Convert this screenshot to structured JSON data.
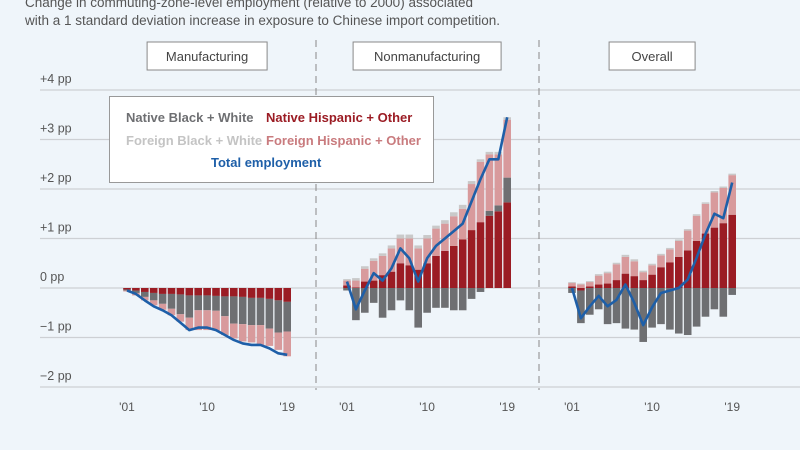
{
  "subtitle": [
    "Change in commuting-zone-level employment (relative to 2000) associated",
    "with a 1 standard deviation increase in exposure to Chinese import competition."
  ],
  "colors": {
    "native_hispanic_other": "#9b1c24",
    "native_black_white": "#6e6f72",
    "foreign_hispanic_other": "#d89a9c",
    "foreign_black_white": "#c9c9c9",
    "total": "#1e5fa8"
  },
  "legend": {
    "native_black_white": "Native Black + White",
    "native_hispanic_other": "Native Hispanic + Other",
    "foreign_black_white": "Foreign Black + White",
    "foreign_hispanic_other": "Foreign Hispanic + Other",
    "total": "Total employment"
  },
  "chart_data": {
    "type": "bar",
    "stacked": true,
    "unit": "pp",
    "ylim": [
      -2,
      4
    ],
    "yticks": [
      {
        "v": 4,
        "label": "+4 pp"
      },
      {
        "v": 3,
        "label": "+3 pp"
      },
      {
        "v": 2,
        "label": "+2 pp"
      },
      {
        "v": 1,
        "label": "+1 pp"
      },
      {
        "v": 0,
        "label": "0 pp"
      },
      {
        "v": -1,
        "label": "−1 pp"
      },
      {
        "v": -2,
        "label": "−2 pp"
      }
    ],
    "x": [
      2001,
      2002,
      2003,
      2004,
      2005,
      2006,
      2007,
      2008,
      2009,
      2010,
      2011,
      2012,
      2013,
      2014,
      2015,
      2016,
      2017,
      2018,
      2019
    ],
    "xticks": [
      {
        "v": 2001,
        "label": "'01"
      },
      {
        "v": 2010,
        "label": "'10"
      },
      {
        "v": 2019,
        "label": "'19"
      }
    ],
    "panels": [
      {
        "title": "Manufacturing",
        "series": {
          "native_hispanic_other": [
            -0.03,
            -0.05,
            -0.08,
            -0.1,
            -0.12,
            -0.12,
            -0.13,
            -0.15,
            -0.15,
            -0.15,
            -0.16,
            -0.17,
            -0.17,
            -0.18,
            -0.2,
            -0.2,
            -0.22,
            -0.25,
            -0.28
          ],
          "native_black_white": [
            -0.02,
            -0.05,
            -0.1,
            -0.15,
            -0.2,
            -0.3,
            -0.4,
            -0.45,
            -0.3,
            -0.3,
            -0.3,
            -0.4,
            -0.55,
            -0.55,
            -0.55,
            -0.55,
            -0.6,
            -0.65,
            -0.6
          ],
          "foreign_hispanic_other": [
            -0.02,
            -0.05,
            -0.07,
            -0.1,
            -0.12,
            -0.13,
            -0.15,
            -0.25,
            -0.4,
            -0.4,
            -0.4,
            -0.38,
            -0.3,
            -0.35,
            -0.35,
            -0.4,
            -0.35,
            -0.35,
            -0.5
          ],
          "foreign_black_white": [
            0,
            0,
            0,
            0,
            0,
            0,
            0,
            0,
            0,
            0,
            0,
            0,
            0,
            0,
            0,
            0,
            0,
            0,
            0
          ],
          "total": [
            -0.05,
            -0.12,
            -0.25,
            -0.37,
            -0.45,
            -0.55,
            -0.7,
            -0.85,
            -0.8,
            -0.8,
            -0.85,
            -0.95,
            -1.05,
            -1.12,
            -1.15,
            -1.15,
            -1.22,
            -1.32,
            -1.35
          ]
        }
      },
      {
        "title": "Nonmanufacturing",
        "series": {
          "native_hispanic_other": [
            0.05,
            0.01,
            0.13,
            0.15,
            0.26,
            0.33,
            0.5,
            0.46,
            0.37,
            0.5,
            0.65,
            0.75,
            0.85,
            0.98,
            1.17,
            1.33,
            1.46,
            1.55,
            1.73
          ],
          "native_black_white": [
            -0.05,
            -0.65,
            -0.5,
            -0.3,
            -0.6,
            -0.45,
            -0.25,
            -0.45,
            -0.8,
            -0.5,
            -0.4,
            -0.4,
            -0.45,
            -0.45,
            -0.22,
            -0.08,
            0.1,
            0.12,
            0.5
          ],
          "foreign_hispanic_other": [
            0.1,
            0.14,
            0.26,
            0.4,
            0.39,
            0.47,
            0.5,
            0.54,
            0.43,
            0.5,
            0.55,
            0.55,
            0.6,
            0.62,
            0.93,
            1.22,
            1.14,
            1.03,
            1.17
          ],
          "foreign_black_white": [
            0.03,
            0.05,
            0.05,
            0.05,
            0.05,
            0.06,
            0.08,
            0.08,
            0.06,
            0.07,
            0.06,
            0.07,
            0.08,
            0.08,
            0.06,
            0.05,
            0.05,
            0.05,
            0.05
          ],
          "total": [
            0.13,
            -0.43,
            -0.05,
            0.3,
            0.15,
            0.4,
            0.8,
            0.6,
            0.13,
            0.6,
            0.85,
            1.0,
            1.15,
            1.3,
            1.75,
            2.2,
            2.6,
            2.6,
            3.45
          ]
        }
      },
      {
        "title": "Overall",
        "series": {
          "native_hispanic_other": [
            0.03,
            -0.05,
            0.03,
            0.07,
            0.09,
            0.16,
            0.29,
            0.24,
            0.16,
            0.27,
            0.42,
            0.52,
            0.63,
            0.76,
            0.95,
            1.1,
            1.22,
            1.31,
            1.48
          ],
          "native_black_white": [
            -0.1,
            -0.66,
            -0.54,
            -0.43,
            -0.73,
            -0.71,
            -0.82,
            -0.84,
            -1.09,
            -0.8,
            -0.73,
            -0.84,
            -0.92,
            -0.95,
            -0.78,
            -0.58,
            -0.43,
            -0.58,
            -0.14
          ],
          "foreign_hispanic_other": [
            0.07,
            0.07,
            0.09,
            0.18,
            0.21,
            0.32,
            0.34,
            0.3,
            0.16,
            0.19,
            0.24,
            0.26,
            0.32,
            0.4,
            0.51,
            0.6,
            0.71,
            0.71,
            0.8
          ],
          "foreign_black_white": [
            0.02,
            0.02,
            0.02,
            0.03,
            0.03,
            0.03,
            0.04,
            0.04,
            0.03,
            0.03,
            0.03,
            0.03,
            0.03,
            0.03,
            0.03,
            0.03,
            0.03,
            0.03,
            0.03
          ],
          "total": [
            0,
            -0.61,
            -0.37,
            -0.16,
            -0.37,
            -0.24,
            0.07,
            -0.3,
            -0.75,
            -0.39,
            -0.1,
            -0.05,
            0,
            0.17,
            0.61,
            1.09,
            1.5,
            1.41,
            2.13
          ]
        }
      }
    ]
  }
}
